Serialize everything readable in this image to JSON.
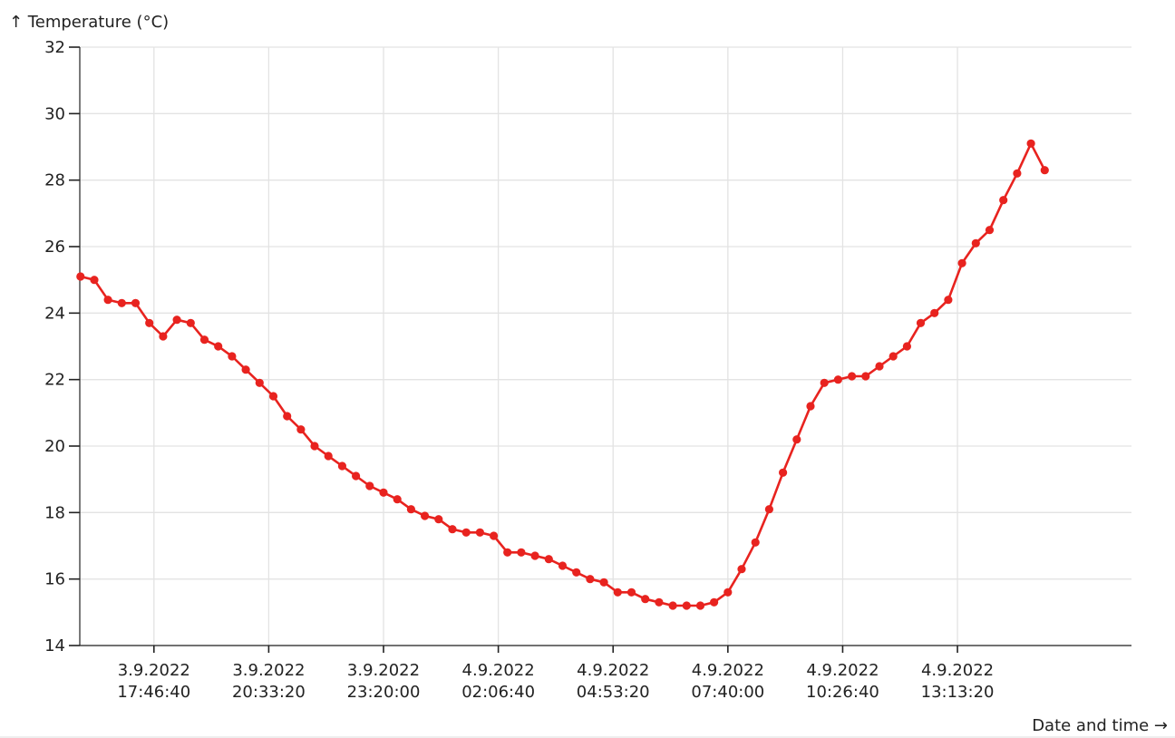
{
  "chart_data": {
    "type": "line",
    "ylabel": "↑ Temperature  (°C)",
    "xlabel": "Date and time →",
    "ylim": [
      14,
      32
    ],
    "xlim": [
      "2022-09-03T15:59:00",
      "2022-09-04T17:26:00"
    ],
    "y_ticks": [
      14,
      16,
      18,
      20,
      22,
      24,
      26,
      28,
      30,
      32
    ],
    "x_ticks": [
      {
        "value": "2022-09-03T17:46:40",
        "line1": "3.9.2022",
        "line2": "17:46:40"
      },
      {
        "value": "2022-09-03T20:33:20",
        "line1": "3.9.2022",
        "line2": "20:33:20"
      },
      {
        "value": "2022-09-03T23:20:00",
        "line1": "3.9.2022",
        "line2": "23:20:00"
      },
      {
        "value": "2022-09-04T02:06:40",
        "line1": "4.9.2022",
        "line2": "02:06:40"
      },
      {
        "value": "2022-09-04T04:53:20",
        "line1": "4.9.2022",
        "line2": "04:53:20"
      },
      {
        "value": "2022-09-04T07:40:00",
        "line1": "4.9.2022",
        "line2": "07:40:00"
      },
      {
        "value": "2022-09-04T10:26:40",
        "line1": "4.9.2022",
        "line2": "10:26:40"
      },
      {
        "value": "2022-09-04T13:13:20",
        "line1": "4.9.2022",
        "line2": "13:13:20"
      }
    ],
    "grid": true,
    "series": [
      {
        "color": "#e8231f",
        "x": [
          "2022-09-03T16:00:00",
          "2022-09-03T16:20:00",
          "2022-09-03T16:40:00",
          "2022-09-03T17:00:00",
          "2022-09-03T17:20:00",
          "2022-09-03T17:40:00",
          "2022-09-03T18:00:00",
          "2022-09-03T18:20:00",
          "2022-09-03T18:40:00",
          "2022-09-03T19:00:00",
          "2022-09-03T19:20:00",
          "2022-09-03T19:40:00",
          "2022-09-03T20:00:00",
          "2022-09-03T20:20:00",
          "2022-09-03T20:40:00",
          "2022-09-03T21:00:00",
          "2022-09-03T21:20:00",
          "2022-09-03T21:40:00",
          "2022-09-03T22:00:00",
          "2022-09-03T22:20:00",
          "2022-09-03T22:40:00",
          "2022-09-03T23:00:00",
          "2022-09-03T23:20:00",
          "2022-09-03T23:40:00",
          "2022-09-04T00:00:00",
          "2022-09-04T00:20:00",
          "2022-09-04T00:40:00",
          "2022-09-04T01:00:00",
          "2022-09-04T01:20:00",
          "2022-09-04T01:40:00",
          "2022-09-04T02:00:00",
          "2022-09-04T02:20:00",
          "2022-09-04T02:40:00",
          "2022-09-04T03:00:00",
          "2022-09-04T03:20:00",
          "2022-09-04T03:40:00",
          "2022-09-04T04:00:00",
          "2022-09-04T04:20:00",
          "2022-09-04T04:40:00",
          "2022-09-04T05:00:00",
          "2022-09-04T05:20:00",
          "2022-09-04T05:40:00",
          "2022-09-04T06:00:00",
          "2022-09-04T06:20:00",
          "2022-09-04T06:40:00",
          "2022-09-04T07:00:00",
          "2022-09-04T07:20:00",
          "2022-09-04T07:40:00",
          "2022-09-04T08:00:00",
          "2022-09-04T08:20:00",
          "2022-09-04T08:40:00",
          "2022-09-04T09:00:00",
          "2022-09-04T09:20:00",
          "2022-09-04T09:40:00",
          "2022-09-04T10:00:00",
          "2022-09-04T10:20:00",
          "2022-09-04T10:40:00",
          "2022-09-04T11:00:00",
          "2022-09-04T11:20:00",
          "2022-09-04T11:40:00",
          "2022-09-04T12:00:00",
          "2022-09-04T12:20:00",
          "2022-09-04T12:40:00",
          "2022-09-04T13:00:00",
          "2022-09-04T13:20:00",
          "2022-09-04T13:40:00",
          "2022-09-04T14:00:00",
          "2022-09-04T14:20:00",
          "2022-09-04T14:40:00",
          "2022-09-04T15:00:00",
          "2022-09-04T15:20:00"
        ],
        "y": [
          25.1,
          25.0,
          24.4,
          24.3,
          24.3,
          23.7,
          23.3,
          23.8,
          23.7,
          23.2,
          23.0,
          22.7,
          22.3,
          21.9,
          21.5,
          20.9,
          20.5,
          20.0,
          19.7,
          19.4,
          19.1,
          18.8,
          18.6,
          18.4,
          18.1,
          17.9,
          17.8,
          17.5,
          17.4,
          17.4,
          17.3,
          16.8,
          16.8,
          16.7,
          16.6,
          16.4,
          16.2,
          16.0,
          15.9,
          15.6,
          15.6,
          15.4,
          15.3,
          15.2,
          15.2,
          15.2,
          15.3,
          15.6,
          16.3,
          17.1,
          18.1,
          19.2,
          20.2,
          21.2,
          21.9,
          22.0,
          22.1,
          22.1,
          22.4,
          22.7,
          23.0,
          23.7,
          24.0,
          24.4,
          25.5,
          26.1,
          26.5,
          27.4,
          28.2,
          29.1,
          28.3
        ]
      }
    ]
  }
}
